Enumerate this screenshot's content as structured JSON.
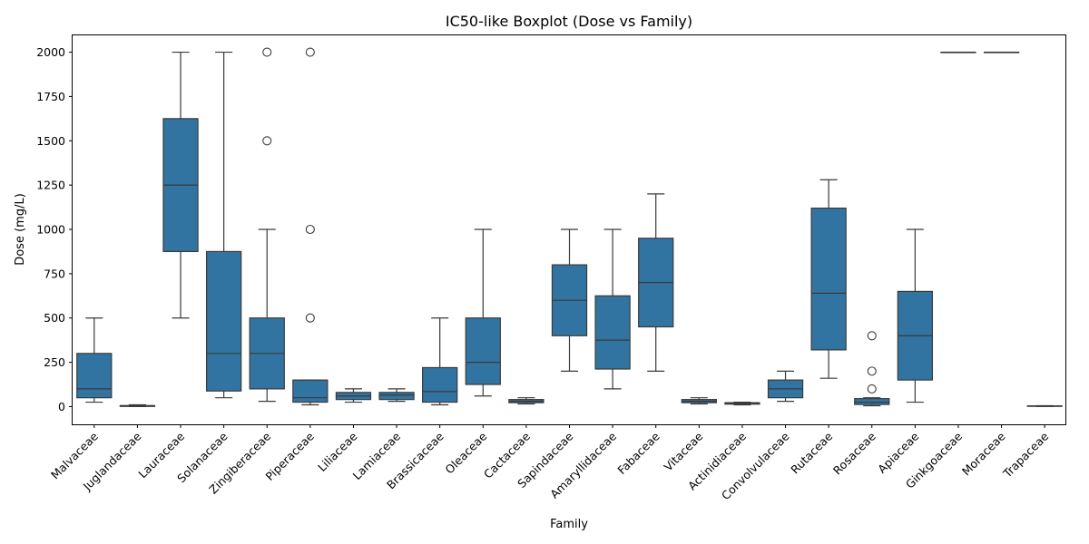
{
  "chart_data": {
    "type": "boxplot",
    "title": "IC50-like Boxplot (Dose vs Family)",
    "xlabel": "Family",
    "ylabel": "Dose (mg/L)",
    "ylim": [
      -100,
      2100
    ],
    "yticks": [
      0,
      250,
      500,
      750,
      1000,
      1250,
      1500,
      1750,
      2000
    ],
    "grid": false,
    "box_color": "#3274a1",
    "line_color": "#3a3a3a",
    "categories": [
      "Malvaceae",
      "Juglandaceae",
      "Lauraceae",
      "Solanaceae",
      "Zingiberaceae",
      "Piperaceae",
      "Liliaceae",
      "Lamiaceae",
      "Brassicaceae",
      "Oleaceae",
      "Cactaceae",
      "Sapindaceae",
      "Amaryllidaceae",
      "Fabaceae",
      "Vitaceae",
      "Actinidiaceae",
      "Convolvulaceae",
      "Rutaceae",
      "Rosaceae",
      "Apiaceae",
      "Ginkgoaceae",
      "Moraceae",
      "Trapaceae"
    ],
    "boxes": [
      {
        "category": "Malvaceae",
        "whisker_low": 25,
        "q1": 50,
        "median": 100,
        "q3": 300,
        "whisker_high": 500,
        "outliers": []
      },
      {
        "category": "Juglandaceae",
        "whisker_low": 0,
        "q1": 1,
        "median": 3,
        "q3": 6,
        "whisker_high": 10,
        "outliers": []
      },
      {
        "category": "Lauraceae",
        "whisker_low": 500,
        "q1": 875,
        "median": 1250,
        "q3": 1625,
        "whisker_high": 2000,
        "outliers": []
      },
      {
        "category": "Solanaceae",
        "whisker_low": 50,
        "q1": 88,
        "median": 300,
        "q3": 875,
        "whisker_high": 2000,
        "outliers": []
      },
      {
        "category": "Zingiberaceae",
        "whisker_low": 30,
        "q1": 100,
        "median": 300,
        "q3": 500,
        "whisker_high": 1000,
        "outliers": [
          1500,
          2000
        ]
      },
      {
        "category": "Piperaceae",
        "whisker_low": 10,
        "q1": 25,
        "median": 50,
        "q3": 150,
        "whisker_high": 150,
        "outliers": [
          500,
          1000,
          2000
        ]
      },
      {
        "category": "Liliaceae",
        "whisker_low": 25,
        "q1": 40,
        "median": 60,
        "q3": 80,
        "whisker_high": 100,
        "outliers": []
      },
      {
        "category": "Lamiaceae",
        "whisker_low": 30,
        "q1": 40,
        "median": 65,
        "q3": 80,
        "whisker_high": 100,
        "outliers": []
      },
      {
        "category": "Brassicaceae",
        "whisker_low": 10,
        "q1": 25,
        "median": 85,
        "q3": 220,
        "whisker_high": 500,
        "outliers": []
      },
      {
        "category": "Oleaceae",
        "whisker_low": 60,
        "q1": 125,
        "median": 250,
        "q3": 500,
        "whisker_high": 1000,
        "outliers": []
      },
      {
        "category": "Cactaceae",
        "whisker_low": 15,
        "q1": 22,
        "median": 30,
        "q3": 40,
        "whisker_high": 50,
        "outliers": []
      },
      {
        "category": "Sapindaceae",
        "whisker_low": 200,
        "q1": 400,
        "median": 600,
        "q3": 800,
        "whisker_high": 1000,
        "outliers": []
      },
      {
        "category": "Amaryllidaceae",
        "whisker_low": 100,
        "q1": 212,
        "median": 375,
        "q3": 625,
        "whisker_high": 1000,
        "outliers": []
      },
      {
        "category": "Fabaceae",
        "whisker_low": 200,
        "q1": 450,
        "median": 700,
        "q3": 950,
        "whisker_high": 1200,
        "outliers": []
      },
      {
        "category": "Vitaceae",
        "whisker_low": 15,
        "q1": 22,
        "median": 30,
        "q3": 40,
        "whisker_high": 50,
        "outliers": []
      },
      {
        "category": "Actinidiaceae",
        "whisker_low": 10,
        "q1": 14,
        "median": 18,
        "q3": 22,
        "whisker_high": 25,
        "outliers": []
      },
      {
        "category": "Convolvulaceae",
        "whisker_low": 30,
        "q1": 50,
        "median": 100,
        "q3": 150,
        "whisker_high": 200,
        "outliers": []
      },
      {
        "category": "Rutaceae",
        "whisker_low": 160,
        "q1": 320,
        "median": 640,
        "q3": 1120,
        "whisker_high": 1280,
        "outliers": []
      },
      {
        "category": "Rosaceae",
        "whisker_low": 5,
        "q1": 12,
        "median": 25,
        "q3": 45,
        "whisker_high": 50,
        "outliers": [
          100,
          200,
          400
        ]
      },
      {
        "category": "Apiaceae",
        "whisker_low": 25,
        "q1": 150,
        "median": 400,
        "q3": 650,
        "whisker_high": 1000,
        "outliers": []
      },
      {
        "category": "Ginkgoaceae",
        "whisker_low": 2000,
        "q1": 2000,
        "median": 2000,
        "q3": 2000,
        "whisker_high": 2000,
        "outliers": []
      },
      {
        "category": "Moraceae",
        "whisker_low": 2000,
        "q1": 2000,
        "median": 2000,
        "q3": 2000,
        "whisker_high": 2000,
        "outliers": []
      },
      {
        "category": "Trapaceae",
        "whisker_low": 1,
        "q1": 2,
        "median": 3,
        "q3": 4,
        "whisker_high": 5,
        "outliers": []
      }
    ]
  }
}
